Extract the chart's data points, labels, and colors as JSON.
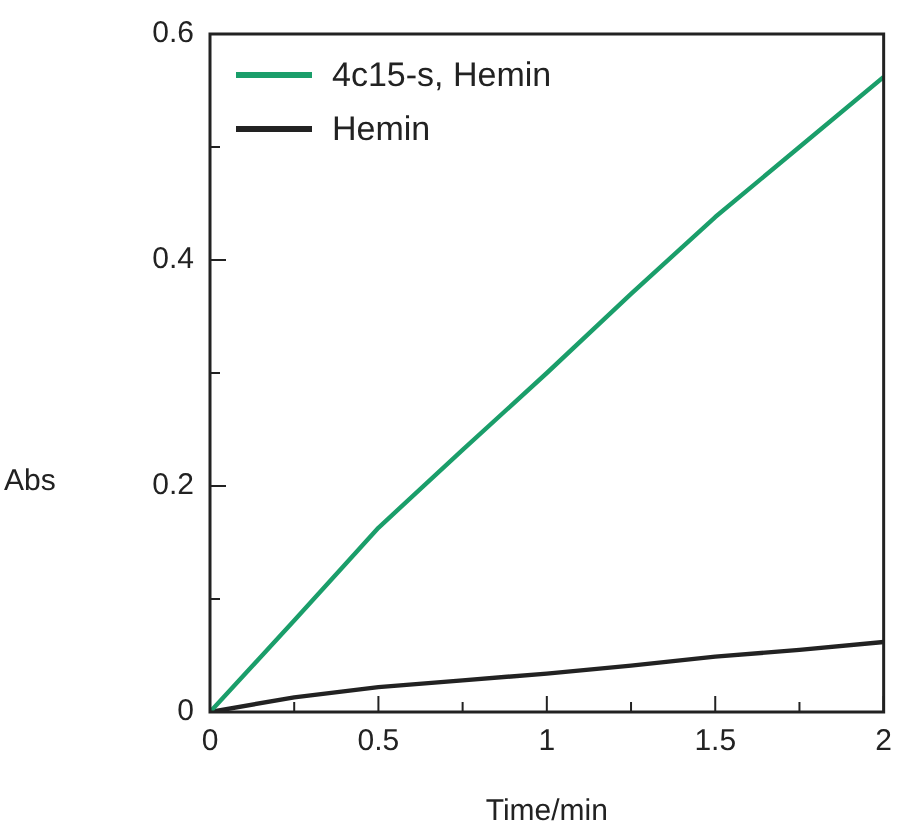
{
  "chart_data": {
    "type": "line",
    "xlabel": "Time/min",
    "ylabel": "Abs",
    "xlim": [
      0,
      2
    ],
    "xticks": [
      0,
      {
        "value": 0.25,
        "label": null
      },
      0.5,
      {
        "value": 0.75,
        "label": null
      },
      1,
      {
        "value": 1.25,
        "label": null
      },
      1.5,
      {
        "value": 1.75,
        "label": null
      },
      2
    ],
    "ylim": [
      0,
      0.6
    ],
    "yticks": [
      0,
      {
        "value": 0.1,
        "label": null
      },
      0.2,
      {
        "value": 0.3,
        "label": null
      },
      0.4,
      {
        "value": 0.5,
        "label": null
      },
      0.6
    ],
    "grid": false,
    "legend": "top left",
    "marker": "none",
    "line_style": "solid",
    "series": [
      {
        "name": "4c15-s, Hemin",
        "color": "#1a9e6a",
        "x": [
          0,
          0.25,
          0.5,
          0.75,
          1,
          1.25,
          1.5,
          1.75,
          2
        ],
        "values": [
          0,
          0.081,
          0.163,
          0.232,
          0.3,
          0.37,
          0.438,
          0.5,
          0.562
        ]
      },
      {
        "name": "Hemin",
        "color": "#222222",
        "x": [
          0,
          0.25,
          0.5,
          0.75,
          1,
          1.25,
          1.5,
          1.75,
          2
        ],
        "values": [
          0,
          0.013,
          0.022,
          0.028,
          0.034,
          0.041,
          0.049,
          0.055,
          0.062
        ]
      }
    ]
  }
}
